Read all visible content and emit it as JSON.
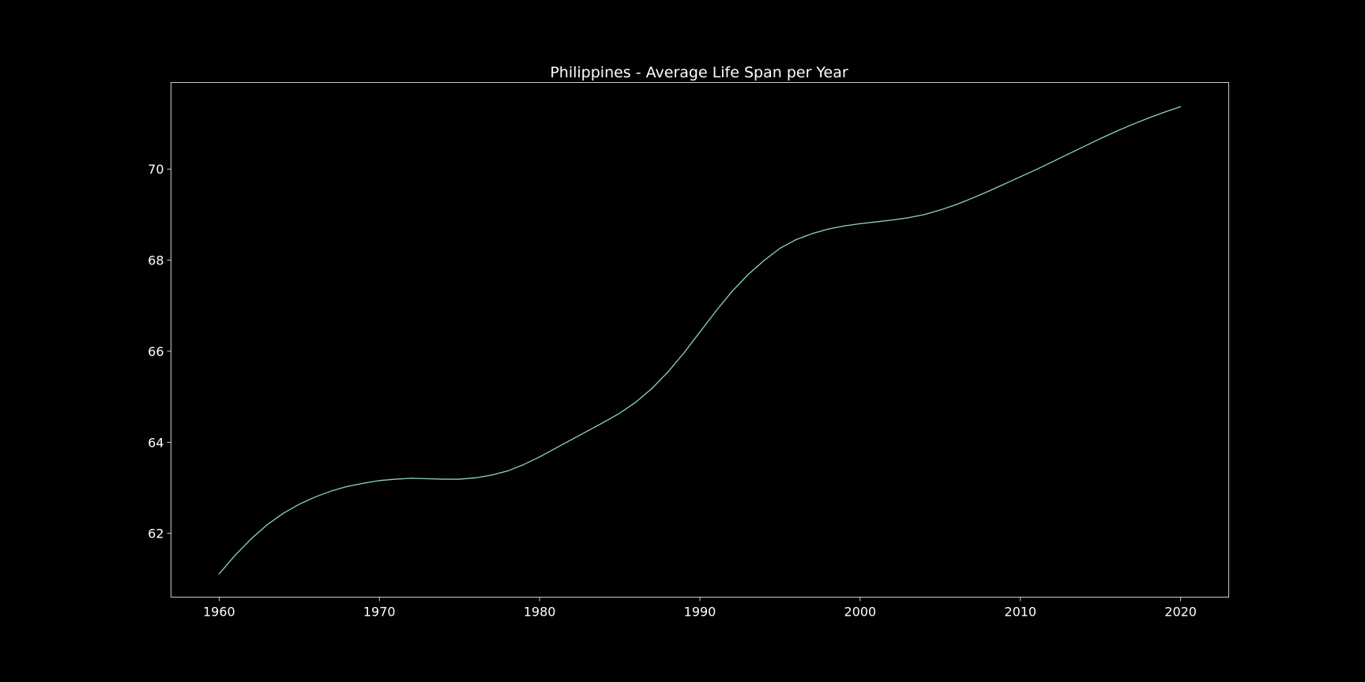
{
  "colors": {
    "background": "#000000",
    "axes": "#ffffff",
    "series_line": "#8dd3c7"
  },
  "chart_data": {
    "type": "line",
    "title": "Philippines - Average Life Span per Year",
    "xlabel": "",
    "ylabel": "",
    "xlim": [
      1957,
      2023
    ],
    "ylim": [
      60.6,
      71.9
    ],
    "grid": false,
    "x_ticks": [
      1960,
      1970,
      1980,
      1990,
      2000,
      2010,
      2020
    ],
    "y_ticks": [
      62,
      64,
      66,
      68,
      70
    ],
    "series": [
      {
        "x": [
          1960,
          1961,
          1962,
          1963,
          1964,
          1965,
          1966,
          1967,
          1968,
          1969,
          1970,
          1971,
          1972,
          1973,
          1974,
          1975,
          1976,
          1977,
          1978,
          1979,
          1980,
          1981,
          1982,
          1983,
          1984,
          1985,
          1986,
          1987,
          1988,
          1989,
          1990,
          1991,
          1992,
          1993,
          1994,
          1995,
          1996,
          1997,
          1998,
          1999,
          2000,
          2001,
          2002,
          2003,
          2004,
          2005,
          2006,
          2007,
          2008,
          2009,
          2010,
          2011,
          2012,
          2013,
          2014,
          2015,
          2016,
          2017,
          2018,
          2019,
          2020
        ],
        "y": [
          61.11,
          61.52,
          61.88,
          62.19,
          62.44,
          62.64,
          62.8,
          62.93,
          63.03,
          63.1,
          63.16,
          63.19,
          63.21,
          63.2,
          63.19,
          63.19,
          63.22,
          63.28,
          63.37,
          63.51,
          63.68,
          63.87,
          64.06,
          64.25,
          64.44,
          64.64,
          64.88,
          65.18,
          65.54,
          65.96,
          66.42,
          66.88,
          67.31,
          67.68,
          67.99,
          68.26,
          68.45,
          68.58,
          68.68,
          68.75,
          68.8,
          68.84,
          68.88,
          68.93,
          69.0,
          69.1,
          69.22,
          69.36,
          69.51,
          69.67,
          69.83,
          69.99,
          70.16,
          70.33,
          70.5,
          70.67,
          70.83,
          70.98,
          71.12,
          71.25,
          71.37
        ]
      }
    ]
  }
}
